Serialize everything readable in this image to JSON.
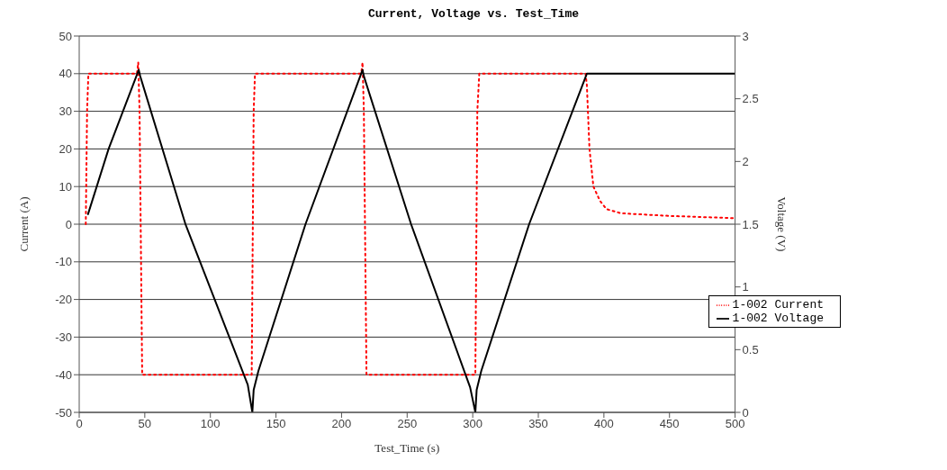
{
  "chart_data": {
    "type": "line",
    "title": "Current, Voltage vs. Test_Time",
    "xlabel": "Test_Time (s)",
    "ylabel": "Current (A)",
    "y2label": "Voltage (V)",
    "xlim": [
      0,
      500
    ],
    "xticks": [
      0,
      50,
      100,
      150,
      200,
      250,
      300,
      350,
      400,
      450,
      500
    ],
    "ylim": [
      -50,
      50
    ],
    "yticks": [
      -50,
      -40,
      -30,
      -20,
      -10,
      0,
      10,
      20,
      30,
      40,
      50
    ],
    "y2lim": [
      0,
      3
    ],
    "y2ticks": [
      0,
      0.5,
      1,
      1.5,
      2,
      2.5,
      3
    ],
    "grid": "y",
    "legend": "bottom right",
    "marker": "none",
    "series": [
      {
        "name": "1-002 Current",
        "color": "#ff0000",
        "line_style": "dotted",
        "x": [
          5,
          6,
          7,
          44,
          45,
          46,
          48,
          131.5,
          133,
          134,
          215,
          216,
          217,
          219,
          302,
          303.5,
          305,
          386,
          387,
          389,
          392,
          397,
          402,
          413,
          450,
          500
        ],
        "values": [
          0,
          30,
          40,
          40,
          43,
          30,
          -40,
          -40,
          30,
          40,
          40,
          43,
          30,
          -40,
          -40,
          30,
          40,
          40,
          37,
          20,
          10,
          6.2,
          4,
          2.9,
          2.2,
          1.6
        ]
      },
      {
        "name": "1-002 Voltage",
        "color": "#000000",
        "line_style": "solid",
        "axis": "y2",
        "x": [
          6.7,
          22.4,
          45.4,
          46.5,
          81,
          128.5,
          132,
          133,
          136.6,
          172.5,
          216,
          217,
          253,
          298,
          302,
          303,
          306.5,
          343,
          387,
          500
        ],
        "values": [
          1.58,
          2.1,
          2.73,
          2.68,
          1.5,
          0.22,
          0,
          0.18,
          0.33,
          1.5,
          2.73,
          2.68,
          1.5,
          0.2,
          0,
          0.18,
          0.33,
          1.5,
          2.7,
          2.7
        ]
      }
    ]
  }
}
